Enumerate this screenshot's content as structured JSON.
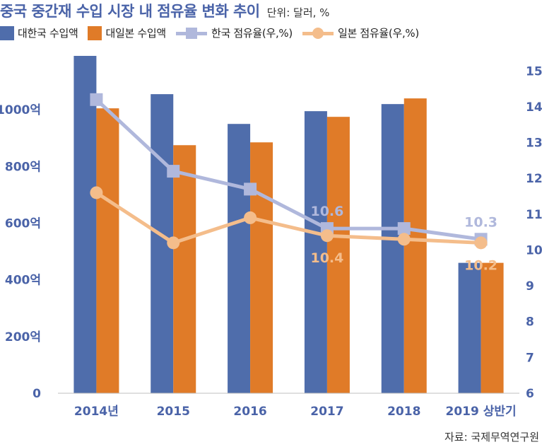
{
  "header": {
    "title": "중국 중간재 수입 시장 내 점유율 변화 추이",
    "unit": "단위: 달러, %"
  },
  "legend": [
    {
      "label": "대한국 수입액",
      "kind": "bar",
      "color": "#4f6dab"
    },
    {
      "label": "대일본 수입액",
      "kind": "bar",
      "color": "#e07b28"
    },
    {
      "label": "한국 점유율(우,%)",
      "kind": "line-square",
      "color": "#b0b8dc"
    },
    {
      "label": "일본 점유율(우,%)",
      "kind": "line-circle",
      "color": "#f4bd8b"
    }
  ],
  "source": "자료: 국제무역연구원",
  "chart_data": {
    "type": "bar+line",
    "categories": [
      "2014년",
      "2015",
      "2016",
      "2017",
      "2018",
      "2019 상반기"
    ],
    "series": [
      {
        "name": "대한국 수입액",
        "type": "bar",
        "axis": "left",
        "color": "#4f6dab",
        "values": [
          1190,
          1055,
          950,
          995,
          1020,
          460
        ]
      },
      {
        "name": "대일본 수입액",
        "type": "bar",
        "axis": "left",
        "color": "#e07b28",
        "values": [
          1005,
          875,
          885,
          975,
          1040,
          460
        ]
      },
      {
        "name": "한국 점유율(우,%)",
        "type": "line",
        "axis": "right",
        "color": "#b0b8dc",
        "marker": "square",
        "values": [
          14.2,
          12.2,
          11.7,
          10.6,
          10.6,
          10.3
        ]
      },
      {
        "name": "일본 점유율(우,%)",
        "type": "line",
        "axis": "right",
        "color": "#f4bd8b",
        "marker": "circle",
        "values": [
          11.6,
          10.2,
          10.9,
          10.4,
          10.3,
          10.2
        ]
      }
    ],
    "y_left": {
      "ticks": [
        0,
        200,
        400,
        600,
        800,
        1000
      ],
      "tick_labels": [
        "0",
        "200억",
        "400억",
        "600억",
        "800억",
        "1000억"
      ],
      "range": [
        0,
        1200
      ]
    },
    "y_right": {
      "ticks": [
        6,
        7,
        8,
        9,
        10,
        11,
        12,
        13,
        14,
        15
      ],
      "tick_labels": [
        "6",
        "7",
        "8",
        "9",
        "10",
        "11",
        "12",
        "13",
        "14",
        "15"
      ],
      "range": [
        6,
        15.5
      ]
    },
    "data_labels": [
      {
        "series": "한국 점유율(우,%)",
        "category": "2017",
        "text": "10.6",
        "color": "#b0b8dc"
      },
      {
        "series": "일본 점유율(우,%)",
        "category": "2017",
        "text": "10.4",
        "color": "#f4bd8b"
      },
      {
        "series": "한국 점유율(우,%)",
        "category": "2019 상반기",
        "text": "10.3",
        "color": "#b0b8dc"
      },
      {
        "series": "일본 점유율(우,%)",
        "category": "2019 상반기",
        "text": "10.2",
        "color": "#f4bd8b"
      }
    ],
    "axis_color": "#4a63a8",
    "grid": false,
    "legend_position": "top-left"
  }
}
